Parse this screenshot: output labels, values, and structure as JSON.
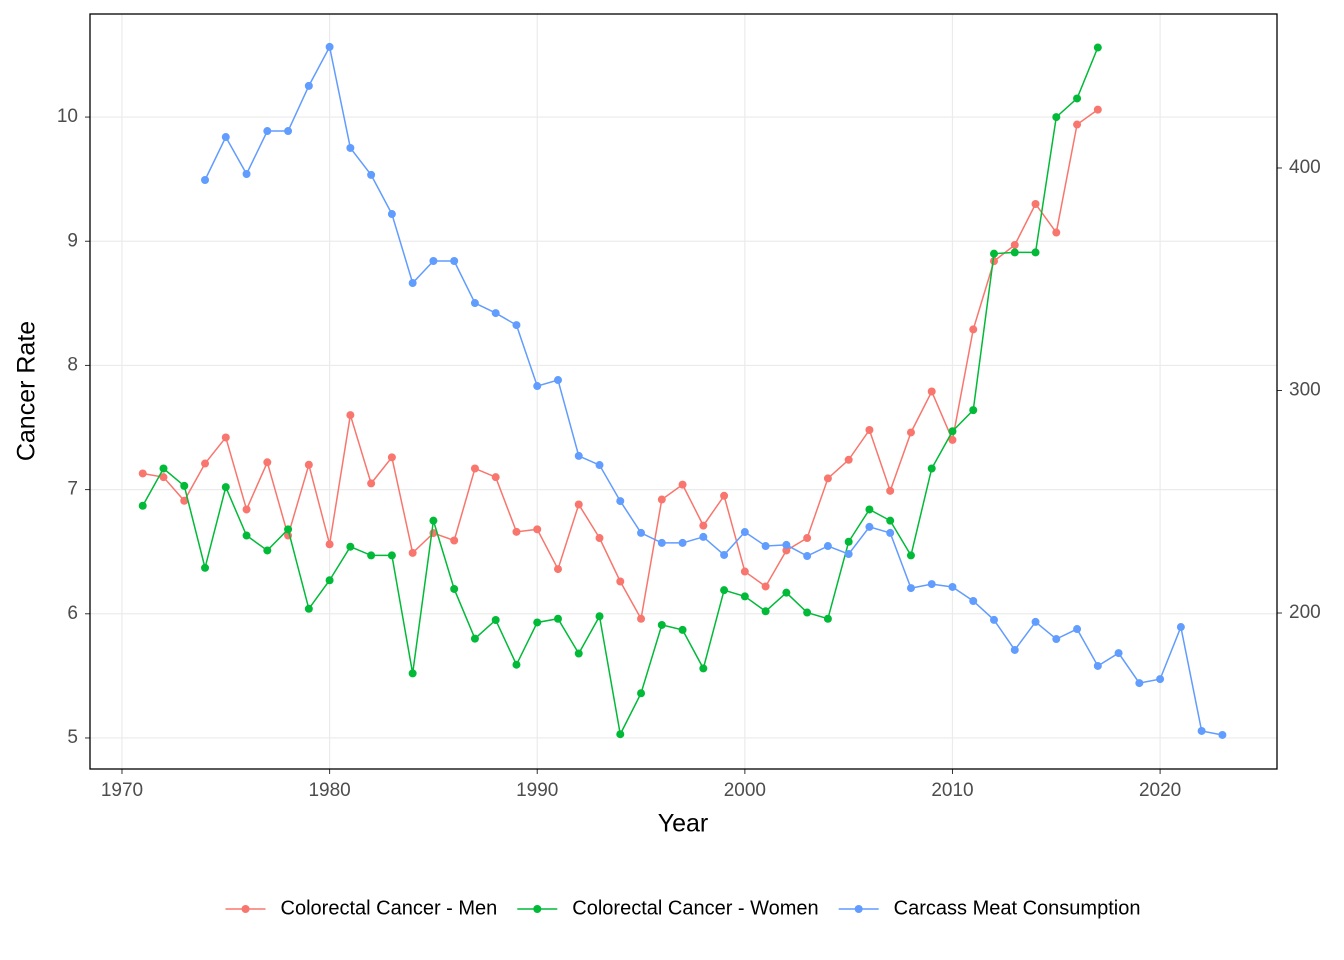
{
  "chart_data": {
    "type": "line",
    "x_label": "Year",
    "y_label": "Cancer Rate",
    "xlim": [
      1968.46,
      2025.63
    ],
    "xticks": [
      1970,
      1980,
      1990,
      2000,
      2010,
      2020
    ],
    "ylim": [
      4.75,
      10.83
    ],
    "yticks": [
      5,
      6,
      7,
      8,
      9,
      10
    ],
    "y2lim": [
      129.9,
      469.2
    ],
    "y2ticks": [
      200,
      300,
      400
    ],
    "grid": true,
    "legend": "bottom",
    "series": [
      {
        "name": "Colorectal Cancer - Men",
        "color": "#F8766D",
        "x": [
          1971,
          1972,
          1973,
          1974,
          1975,
          1976,
          1977,
          1978,
          1979,
          1980,
          1981,
          1982,
          1983,
          1984,
          1985,
          1986,
          1987,
          1988,
          1989,
          1990,
          1991,
          1992,
          1993,
          1994,
          1995,
          1996,
          1997,
          1998,
          1999,
          2000,
          2001,
          2002,
          2003,
          2004,
          2005,
          2006,
          2007,
          2008,
          2009,
          2010,
          2011,
          2012,
          2013,
          2014,
          2015,
          2016,
          2017
        ],
        "values": [
          7.13,
          7.1,
          6.91,
          7.21,
          7.42,
          6.84,
          7.22,
          6.63,
          7.2,
          6.56,
          7.6,
          7.05,
          7.26,
          6.49,
          6.65,
          6.59,
          7.17,
          7.1,
          6.66,
          6.68,
          6.36,
          6.88,
          6.61,
          6.26,
          5.96,
          6.92,
          7.04,
          6.71,
          6.95,
          6.34,
          6.22,
          6.51,
          6.61,
          7.09,
          7.24,
          7.48,
          6.99,
          7.46,
          7.79,
          7.4,
          8.29,
          8.84,
          8.97,
          9.3,
          9.07,
          9.94,
          10.06
        ]
      },
      {
        "name": "Colorectal Cancer - Women",
        "color": "#00BA38",
        "x": [
          1971,
          1972,
          1973,
          1974,
          1975,
          1976,
          1977,
          1978,
          1979,
          1980,
          1981,
          1982,
          1983,
          1984,
          1985,
          1986,
          1987,
          1988,
          1989,
          1990,
          1991,
          1992,
          1993,
          1994,
          1995,
          1996,
          1997,
          1998,
          1999,
          2000,
          2001,
          2002,
          2003,
          2004,
          2005,
          2006,
          2007,
          2008,
          2009,
          2010,
          2011,
          2012,
          2013,
          2014,
          2015,
          2016,
          2017
        ],
        "values": [
          6.87,
          7.17,
          7.03,
          6.37,
          7.02,
          6.63,
          6.51,
          6.68,
          6.04,
          6.27,
          6.54,
          6.47,
          6.47,
          5.52,
          6.75,
          6.2,
          5.8,
          5.95,
          5.59,
          5.93,
          5.96,
          5.68,
          5.98,
          5.03,
          5.36,
          5.91,
          5.87,
          5.56,
          6.19,
          6.14,
          6.02,
          6.17,
          6.01,
          5.96,
          6.58,
          6.84,
          6.75,
          6.47,
          7.17,
          7.47,
          7.64,
          8.9,
          8.91,
          8.91,
          10.0,
          10.15,
          10.56
        ]
      },
      {
        "name": "Carcass Meat Consumption",
        "color": "#619CFF",
        "axis": "y2",
        "x": [
          1974,
          1975,
          1976,
          1977,
          1978,
          1979,
          1980,
          1981,
          1982,
          1983,
          1984,
          1985,
          1986,
          1987,
          1988,
          1989,
          1990,
          1991,
          1992,
          1993,
          1994,
          1995,
          1996,
          1997,
          1998,
          1999,
          2000,
          2001,
          2002,
          2003,
          2004,
          2005,
          2006,
          2007,
          2008,
          2009,
          2010,
          2011,
          2012,
          2013,
          2014,
          2015,
          2016,
          2017,
          2018,
          2019,
          2020,
          2021,
          2022,
          2023
        ],
        "values": [
          394.6,
          413.9,
          397.3,
          416.6,
          416.6,
          436.9,
          454.4,
          409.0,
          396.9,
          379.3,
          348.3,
          358.2,
          358.2,
          339.3,
          334.8,
          329.4,
          302.0,
          304.7,
          270.6,
          266.5,
          250.3,
          236.0,
          231.5,
          231.5,
          234.2,
          226.1,
          236.4,
          230.1,
          230.6,
          225.6,
          230.1,
          226.5,
          238.7,
          236.0,
          211.2,
          213.0,
          211.7,
          205.4,
          196.9,
          183.4,
          196.0,
          188.3,
          192.8,
          176.2,
          182.0,
          168.5,
          170.3,
          193.7,
          147.0,
          145.2
        ]
      }
    ]
  }
}
